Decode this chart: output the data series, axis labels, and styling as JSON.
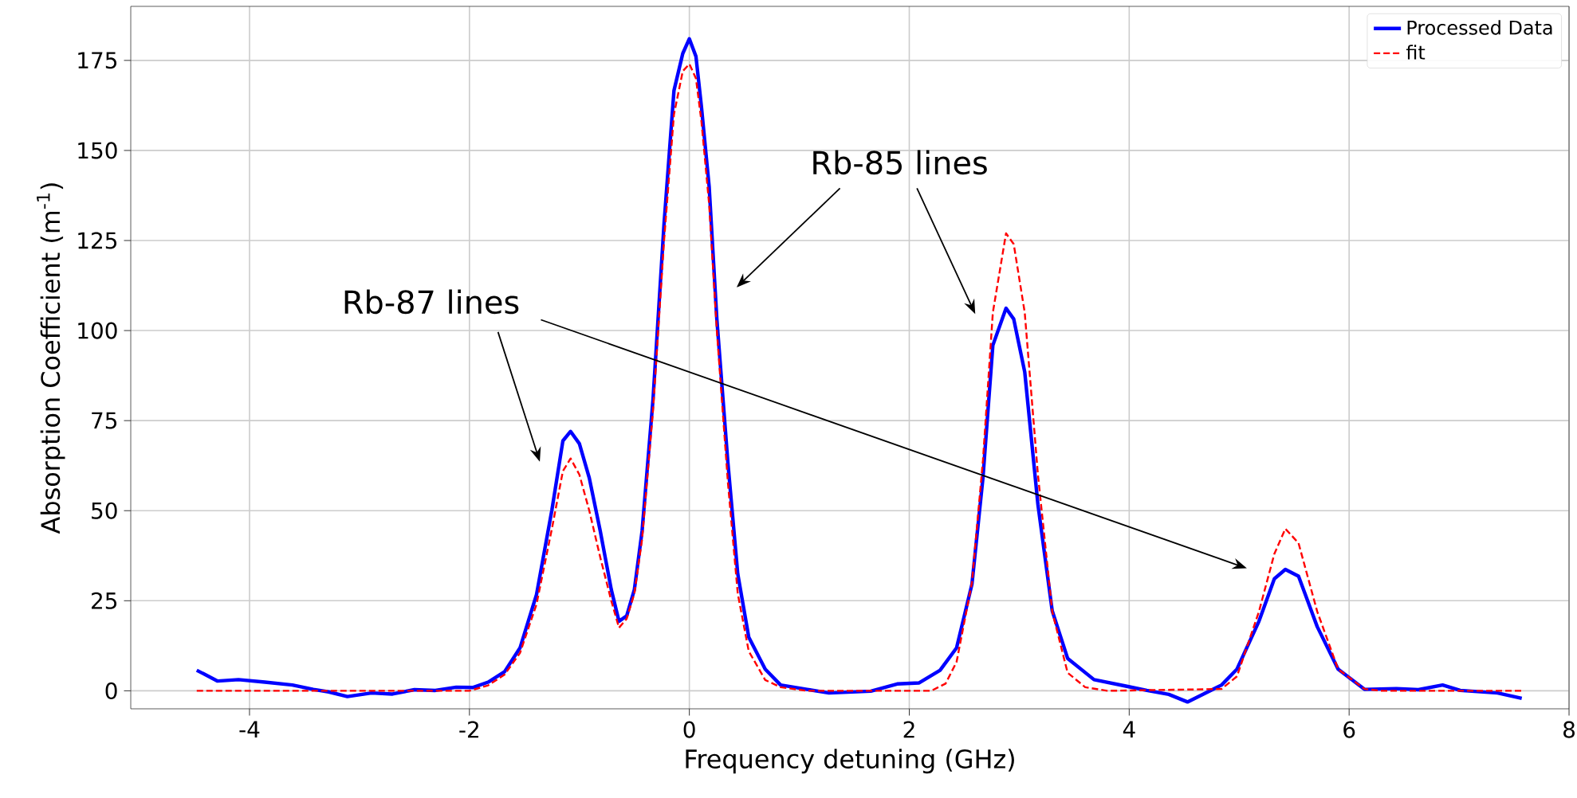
{
  "chart_data": {
    "type": "line",
    "xlabel": "Frequency detuning (GHz)",
    "ylabel": "Absorption Coefficient (m$^{-1}$)",
    "xlim": [
      -5.08,
      8.0
    ],
    "ylim": [
      -5,
      190
    ],
    "xticks": [
      -4,
      -2,
      0,
      2,
      4,
      6,
      8
    ],
    "yticks": [
      0,
      25,
      50,
      75,
      100,
      125,
      150,
      175
    ],
    "grid": true,
    "legend": "top right",
    "annotations": [
      "Rb-85 lines",
      "Rb-87 lines"
    ],
    "series": [
      {
        "name": "Processed Data",
        "color": "#0000ff",
        "line_style": "solid",
        "x": [
          -4.48,
          -4.29,
          -4.1,
          -3.86,
          -3.61,
          -3.42,
          -3.28,
          -3.11,
          -2.89,
          -2.7,
          -2.5,
          -2.31,
          -2.12,
          -1.97,
          -1.83,
          -1.68,
          -1.54,
          -1.39,
          -1.25,
          -1.15,
          -1.08,
          -1.0,
          -0.91,
          -0.81,
          -0.71,
          -0.64,
          -0.57,
          -0.5,
          -0.43,
          -0.33,
          -0.23,
          -0.14,
          -0.06,
          0,
          0.06,
          0.11,
          0.18,
          0.25,
          0.35,
          0.44,
          0.54,
          0.69,
          0.83,
          1.07,
          1.27,
          1.65,
          1.89,
          2.09,
          2.28,
          2.43,
          2.57,
          2.67,
          2.76,
          2.88,
          2.95,
          3.05,
          3.17,
          3.3,
          3.44,
          3.68,
          3.97,
          4.16,
          4.36,
          4.53,
          4.65,
          4.84,
          4.98,
          5.18,
          5.32,
          5.42,
          5.54,
          5.71,
          5.9,
          6.14,
          6.43,
          6.63,
          6.85,
          7.01,
          7.35,
          7.57
        ],
        "values": [
          5.7,
          2.7,
          3.1,
          2.4,
          1.6,
          0.4,
          -0.3,
          -1.6,
          -0.6,
          -0.9,
          0.3,
          0.1,
          1.0,
          0.9,
          2.4,
          5.3,
          11.9,
          26.7,
          50.2,
          69.4,
          72.0,
          68.6,
          59.1,
          44.3,
          28.1,
          19.3,
          20.8,
          28.1,
          44.3,
          81.1,
          129.7,
          166.6,
          176.9,
          181.0,
          176.1,
          162.1,
          140,
          103.2,
          63.5,
          32.5,
          14.9,
          6.0,
          1.6,
          0.4,
          -0.6,
          -0.1,
          1.9,
          2.2,
          5.7,
          11.9,
          29.6,
          59.1,
          95.9,
          106.2,
          103.2,
          88.5,
          51.7,
          22.2,
          9.0,
          3.1,
          1.3,
          0.1,
          -1.0,
          -3.1,
          -1.3,
          1.6,
          6.0,
          19.3,
          31.1,
          33.7,
          31.8,
          17.8,
          6.0,
          0.4,
          0.6,
          0.3,
          1.6,
          0.1,
          -0.6,
          -2.1
        ]
      },
      {
        "name": "fit",
        "color": "#ff0000",
        "line_style": "dashed",
        "x": [
          -4.48,
          -2.0,
          -1.83,
          -1.68,
          -1.54,
          -1.39,
          -1.25,
          -1.15,
          -1.08,
          -1.0,
          -0.91,
          -0.81,
          -0.71,
          -0.64,
          -0.57,
          -0.5,
          -0.43,
          -0.33,
          -0.23,
          -0.14,
          -0.06,
          0,
          0.06,
          0.11,
          0.18,
          0.25,
          0.35,
          0.44,
          0.54,
          0.69,
          0.83,
          1.07,
          2.2,
          2.33,
          2.43,
          2.57,
          2.67,
          2.76,
          2.88,
          2.95,
          3.05,
          3.17,
          3.3,
          3.44,
          3.6,
          3.8,
          4.84,
          4.98,
          5.18,
          5.32,
          5.42,
          5.54,
          5.71,
          5.9,
          6.14,
          6.3,
          7.57
        ],
        "values": [
          0,
          0,
          1.5,
          4.5,
          10.5,
          24,
          45,
          61,
          64.5,
          60,
          50,
          37,
          25,
          17.5,
          20,
          27,
          42,
          78,
          125,
          160,
          172,
          174,
          170,
          158,
          135,
          100,
          58,
          27,
          11,
          3,
          1,
          0,
          0,
          2,
          8,
          30,
          64,
          105,
          127,
          124,
          105,
          60,
          22,
          5,
          1,
          0,
          0.5,
          4,
          22,
          38,
          45,
          41,
          22,
          6,
          0.5,
          0,
          0
        ]
      }
    ]
  }
}
